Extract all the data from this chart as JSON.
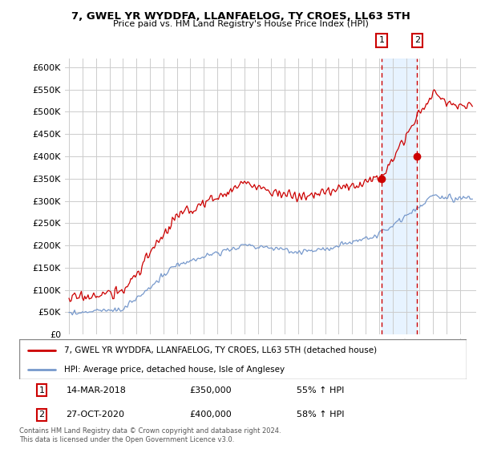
{
  "title": "7, GWEL YR WYDDFA, LLANFAELOG, TY CROES, LL63 5TH",
  "subtitle": "Price paid vs. HM Land Registry's House Price Index (HPI)",
  "line1_label": "7, GWEL YR WYDDFA, LLANFAELOG, TY CROES, LL63 5TH (detached house)",
  "line2_label": "HPI: Average price, detached house, Isle of Anglesey",
  "line1_color": "#cc0000",
  "line2_color": "#7799cc",
  "transaction1_date": 2018.2,
  "transaction1_label": "14-MAR-2018",
  "transaction1_price": "£350,000",
  "transaction1_hpi": "55% ↑ HPI",
  "transaction1_value": 350000,
  "transaction2_date": 2020.83,
  "transaction2_label": "27-OCT-2020",
  "transaction2_price": "£400,000",
  "transaction2_hpi": "58% ↑ HPI",
  "transaction2_value": 400000,
  "ylim": [
    0,
    620000
  ],
  "xlim": [
    1994.7,
    2025.2
  ],
  "ylabel_ticks": [
    0,
    50000,
    100000,
    150000,
    200000,
    250000,
    300000,
    350000,
    400000,
    450000,
    500000,
    550000,
    600000
  ],
  "footer": "Contains HM Land Registry data © Crown copyright and database right 2024.\nThis data is licensed under the Open Government Licence v3.0.",
  "background_color": "#ffffff",
  "plot_bg_color": "#ffffff",
  "grid_color": "#cccccc",
  "span_color": "#ddeeff"
}
